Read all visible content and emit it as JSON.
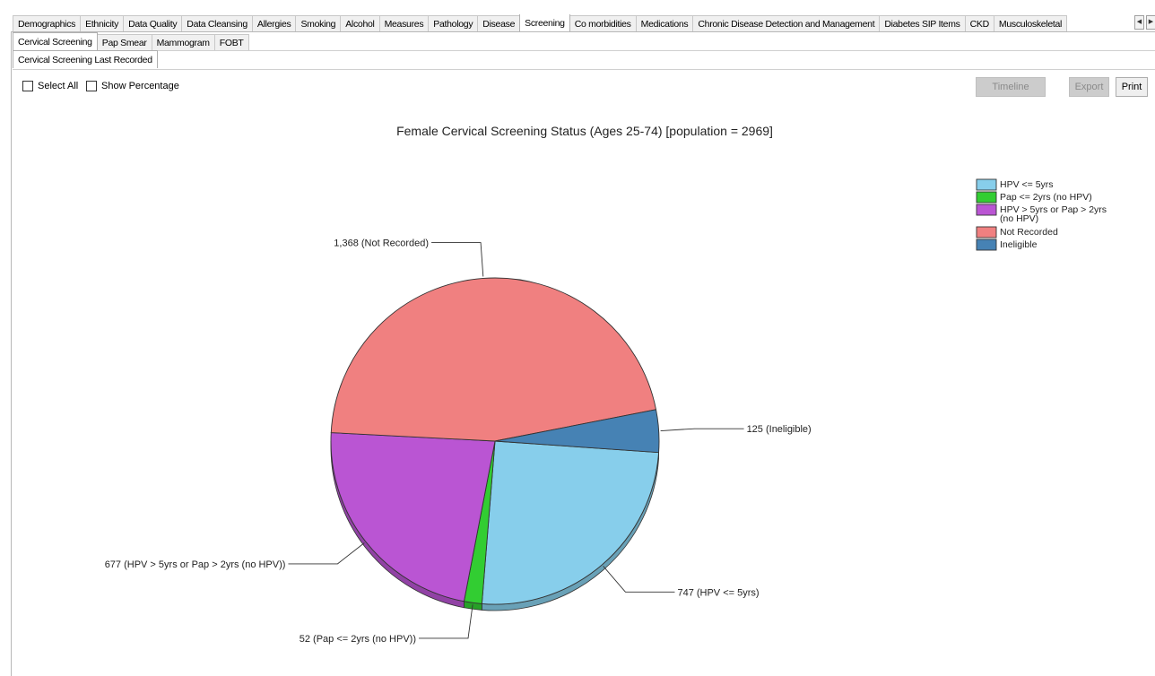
{
  "tabs_main": [
    {
      "label": "Demographics",
      "active": false
    },
    {
      "label": "Ethnicity",
      "active": false
    },
    {
      "label": "Data Quality",
      "active": false
    },
    {
      "label": "Data Cleansing",
      "active": false
    },
    {
      "label": "Allergies",
      "active": false
    },
    {
      "label": "Smoking",
      "active": false
    },
    {
      "label": "Alcohol",
      "active": false
    },
    {
      "label": "Measures",
      "active": false
    },
    {
      "label": "Pathology",
      "active": false
    },
    {
      "label": "Disease",
      "active": false
    },
    {
      "label": "Screening",
      "active": true
    },
    {
      "label": "Co morbidities",
      "active": false
    },
    {
      "label": "Medications",
      "active": false
    },
    {
      "label": "Chronic Disease Detection and Management",
      "active": false
    },
    {
      "label": "Diabetes SIP Items",
      "active": false
    },
    {
      "label": "CKD",
      "active": false
    },
    {
      "label": "Musculoskeletal",
      "active": false
    }
  ],
  "tabs_sub": [
    {
      "label": "Cervical Screening",
      "active": true
    },
    {
      "label": "Pap Smear",
      "active": false
    },
    {
      "label": "Mammogram",
      "active": false
    },
    {
      "label": "FOBT",
      "active": false
    }
  ],
  "tabs_sub2": [
    {
      "label": "Cervical Screening Last Recorded",
      "active": true
    }
  ],
  "scroll": {
    "left": "◀",
    "right": "▶"
  },
  "controls": {
    "select_all": "Select All",
    "show_percentage": "Show Percentage",
    "timeline": "Timeline",
    "export": "Export",
    "print": "Print"
  },
  "chart_data": {
    "type": "pie",
    "title": "Female Cervical Screening Status (Ages 25-74) [population = 2969]",
    "legend_position": "top-right",
    "slices": [
      {
        "name": "HPV <= 5yrs",
        "value": 747,
        "label": "747 (HPV <= 5yrs)",
        "color": "#87ceeb"
      },
      {
        "name": "Pap <= 2yrs (no HPV)",
        "value": 52,
        "label": "52 (Pap <= 2yrs (no HPV))",
        "color": "#32cd32"
      },
      {
        "name": "HPV > 5yrs or Pap > 2yrs (no HPV)",
        "value": 677,
        "label": "677 (HPV > 5yrs or Pap > 2yrs (no HPV))",
        "color": "#ba55d3"
      },
      {
        "name": "Not Recorded",
        "value": 1368,
        "label": "1,368 (Not Recorded)",
        "color": "#f08080"
      },
      {
        "name": "Ineligible",
        "value": 125,
        "label": "125 (Ineligible)",
        "color": "#4682b4"
      }
    ],
    "legend_lines": [
      [
        "HPV <= 5yrs"
      ],
      [
        "Pap <= 2yrs (no HPV)"
      ],
      [
        "HPV > 5yrs or Pap > 2yrs",
        "(no HPV)"
      ],
      [
        "Not Recorded"
      ],
      [
        "Ineligible"
      ]
    ]
  }
}
